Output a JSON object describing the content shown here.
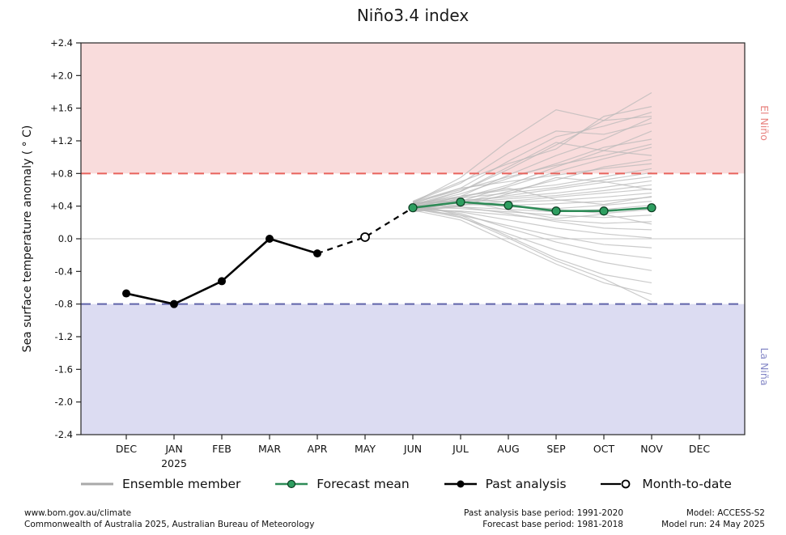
{
  "title": "Niño3.4 index",
  "y_axis": {
    "label": "Sea surface temperature anomaly ( ° C)",
    "ticks": [
      "+2.4",
      "+2.0",
      "+1.6",
      "+1.2",
      "+0.8",
      "+0.4",
      "0.0",
      "-0.4",
      "-0.8",
      "-1.2",
      "-1.6",
      "-2.0",
      "-2.4"
    ],
    "tick_values": [
      2.4,
      2.0,
      1.6,
      1.2,
      0.8,
      0.4,
      0.0,
      -0.4,
      -0.8,
      -1.2,
      -1.6,
      -2.0,
      -2.4
    ]
  },
  "x_axis": {
    "months": [
      "DEC",
      "JAN",
      "FEB",
      "MAR",
      "APR",
      "MAY",
      "JUN",
      "JUL",
      "AUG",
      "SEP",
      "OCT",
      "NOV",
      "DEC"
    ],
    "year_label": "2025",
    "year_under_index": 1
  },
  "regions": {
    "el_nino": {
      "label": "El Niño",
      "fill": "#f9dcdc",
      "line_color": "#e8635c",
      "text_color": "#e8827e"
    },
    "la_nina": {
      "label": "La Niña",
      "fill": "#dcdcf2",
      "line_color": "#5f63a9",
      "text_color": "#8487c6"
    }
  },
  "colors": {
    "ensemble": "#b9b9b9",
    "forecast": "#2e8b57",
    "forecast_dot": "#2e9e60",
    "past": "#000000",
    "zero_line": "#c9c9c9",
    "axis": "#262626"
  },
  "legend": [
    {
      "name": "ensemble-member",
      "label": "Ensemble member"
    },
    {
      "name": "forecast-mean",
      "label": "Forecast mean"
    },
    {
      "name": "past-analysis",
      "label": "Past analysis"
    },
    {
      "name": "month-to-date",
      "label": "Month-to-date"
    }
  ],
  "footer": {
    "left": [
      "www.bom.gov.au/climate",
      "Commonwealth of Australia 2025, Australian Bureau of Meteorology"
    ],
    "center": [
      "Past analysis base period: 1991-2020",
      "Forecast base period: 1981-2018"
    ],
    "right": [
      "Model: ACCESS-S2",
      "Model run: 24 May 2025"
    ]
  },
  "chart_data": {
    "type": "line",
    "title": "Niño3.4 index",
    "xlabel": "",
    "ylabel": "Sea surface temperature anomaly ( ° C)",
    "ylim": [
      -2.4,
      2.4
    ],
    "grid": false,
    "legend_position": "bottom",
    "x_categories": [
      "DEC",
      "JAN",
      "FEB",
      "MAR",
      "APR",
      "MAY",
      "JUN",
      "JUL",
      "AUG",
      "SEP",
      "OCT",
      "NOV",
      "DEC"
    ],
    "thresholds": {
      "el_nino": 0.8,
      "la_nina": -0.8
    },
    "past_analysis": {
      "x_start_index": 0,
      "values": [
        -0.67,
        -0.8,
        -0.52,
        0.0,
        -0.18
      ]
    },
    "month_to_date": {
      "x_index": 5,
      "value": 0.02
    },
    "forecast_mean": {
      "x_start_index": 6,
      "values": [
        0.38,
        0.45,
        0.41,
        0.34,
        0.34,
        0.38
      ]
    },
    "ensemble_members": {
      "x_start_index": 6,
      "series": [
        [
          0.4,
          0.58,
          0.85,
          1.15,
          1.45,
          1.79
        ],
        [
          0.43,
          0.62,
          0.95,
          1.25,
          1.38,
          1.55
        ],
        [
          0.37,
          0.52,
          0.78,
          1.02,
          1.22,
          1.48
        ],
        [
          0.45,
          0.68,
          1.05,
          1.32,
          1.28,
          1.42
        ],
        [
          0.35,
          0.5,
          0.66,
          0.88,
          1.08,
          1.32
        ],
        [
          0.41,
          0.55,
          0.74,
          0.92,
          1.12,
          1.22
        ],
        [
          0.44,
          0.6,
          0.76,
          0.9,
          1.02,
          1.16
        ],
        [
          0.34,
          0.46,
          0.64,
          0.82,
          0.98,
          1.12
        ],
        [
          0.42,
          0.58,
          0.88,
          1.18,
          1.08,
          1.02
        ],
        [
          0.38,
          0.44,
          0.58,
          0.72,
          0.88,
          0.97
        ],
        [
          0.45,
          0.62,
          0.7,
          0.78,
          0.86,
          0.92
        ],
        [
          0.39,
          0.52,
          0.6,
          0.66,
          0.76,
          0.86
        ],
        [
          0.43,
          0.5,
          0.56,
          0.63,
          0.72,
          0.81
        ],
        [
          0.36,
          0.45,
          0.53,
          0.61,
          0.69,
          0.76
        ],
        [
          0.41,
          0.47,
          0.51,
          0.56,
          0.63,
          0.71
        ],
        [
          0.38,
          0.44,
          0.49,
          0.53,
          0.59,
          0.66
        ],
        [
          0.34,
          0.41,
          0.46,
          0.51,
          0.56,
          0.61
        ],
        [
          0.42,
          0.48,
          0.45,
          0.47,
          0.51,
          0.56
        ],
        [
          0.37,
          0.42,
          0.41,
          0.43,
          0.46,
          0.51
        ],
        [
          0.4,
          0.45,
          0.39,
          0.37,
          0.41,
          0.46
        ],
        [
          0.36,
          0.39,
          0.36,
          0.33,
          0.36,
          0.41
        ],
        [
          0.44,
          0.46,
          0.41,
          0.36,
          0.31,
          0.36
        ],
        [
          0.39,
          0.37,
          0.33,
          0.29,
          0.26,
          0.29
        ],
        [
          0.35,
          0.34,
          0.29,
          0.23,
          0.19,
          0.21
        ],
        [
          0.41,
          0.39,
          0.31,
          0.21,
          0.13,
          0.11
        ],
        [
          0.38,
          0.33,
          0.23,
          0.13,
          0.06,
          0.01
        ],
        [
          0.36,
          0.29,
          0.16,
          0.03,
          -0.07,
          -0.11
        ],
        [
          0.4,
          0.31,
          0.13,
          -0.04,
          -0.17,
          -0.24
        ],
        [
          0.37,
          0.26,
          0.06,
          -0.14,
          -0.29,
          -0.39
        ],
        [
          0.42,
          0.29,
          0.03,
          -0.24,
          -0.44,
          -0.54
        ],
        [
          0.35,
          0.23,
          -0.04,
          -0.31,
          -0.54,
          -0.68
        ],
        [
          0.39,
          0.27,
          0.01,
          -0.27,
          -0.49,
          -0.77
        ],
        [
          0.46,
          0.7,
          0.92,
          1.1,
          1.5,
          1.62
        ],
        [
          0.33,
          0.4,
          0.55,
          0.75,
          0.7,
          0.6
        ],
        [
          0.43,
          0.52,
          0.62,
          0.48,
          0.42,
          0.52
        ],
        [
          0.37,
          0.47,
          0.35,
          0.25,
          0.3,
          0.18
        ],
        [
          0.44,
          0.75,
          1.2,
          1.58,
          1.45,
          1.5
        ]
      ]
    }
  }
}
